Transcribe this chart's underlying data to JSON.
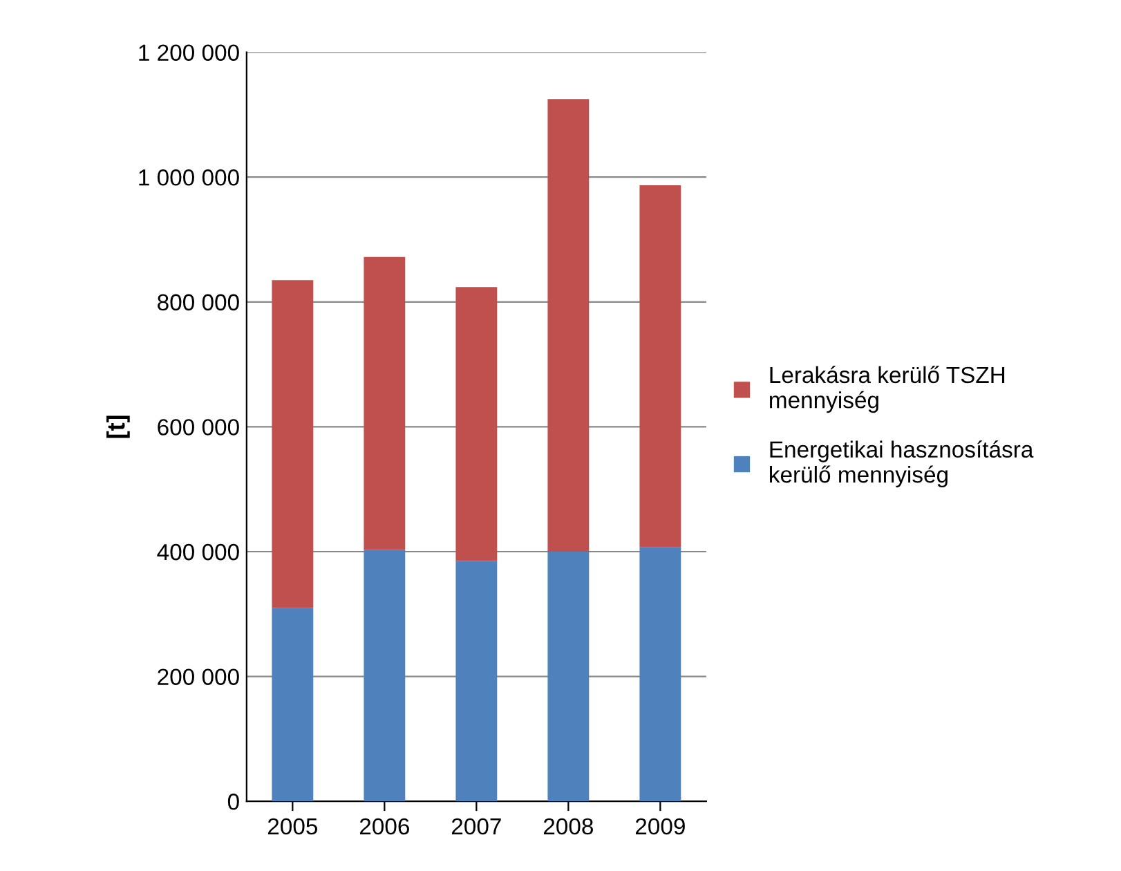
{
  "chart_data": {
    "type": "bar",
    "stacked": true,
    "ylabel": "[t]",
    "categories": [
      "2005",
      "2006",
      "2007",
      "2008",
      "2009"
    ],
    "series": [
      {
        "name": "Energetikai hasznosításra kerülő mennyiség",
        "color": "#4f81bd",
        "values": [
          310000,
          403000,
          385000,
          400000,
          407000
        ]
      },
      {
        "name": "Lerakásra kerülő TSZH mennyiség",
        "color": "#c0504d",
        "values": [
          525000,
          469000,
          439000,
          725000,
          580000
        ]
      }
    ],
    "ylim": [
      0,
      1200000
    ],
    "yticks": [
      0,
      {
        "value": 200000,
        "label": "200 000"
      },
      {
        "value": 400000,
        "label": "400 000"
      },
      {
        "value": 600000,
        "label": "600 000"
      },
      {
        "value": 800000,
        "label": "800 000"
      },
      {
        "value": 1000000,
        "label": "1 000 000"
      },
      {
        "value": 1200000,
        "label": "1 200 000"
      }
    ],
    "grid": "y",
    "legend": "right"
  }
}
